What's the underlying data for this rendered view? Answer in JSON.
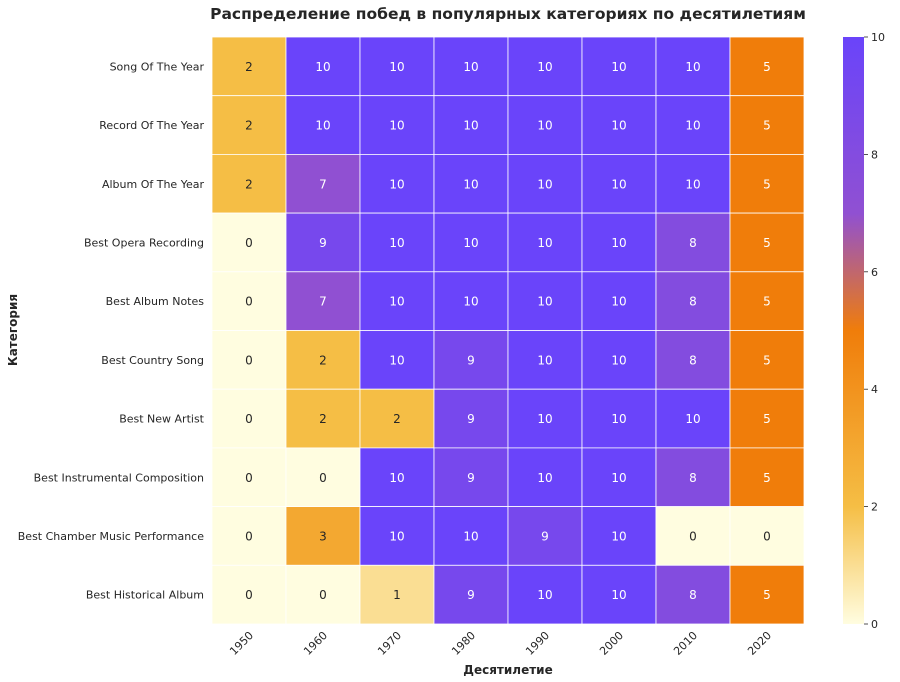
{
  "chart_data": {
    "type": "heatmap",
    "title": "Распределение побед в популярных категориях по десятилетиям",
    "xlabel": "Десятилетие",
    "ylabel": "Категория",
    "x": [
      "1950",
      "1960",
      "1970",
      "1980",
      "1990",
      "2000",
      "2010",
      "2020"
    ],
    "y": [
      "Song Of The Year",
      "Record Of The Year",
      "Album Of The Year",
      "Best Opera Recording",
      "Best Album Notes",
      "Best Country Song",
      "Best New Artist",
      "Best Instrumental Composition",
      "Best Chamber Music Performance",
      "Best Historical Album"
    ],
    "values": [
      [
        2,
        10,
        10,
        10,
        10,
        10,
        10,
        5
      ],
      [
        2,
        10,
        10,
        10,
        10,
        10,
        10,
        5
      ],
      [
        2,
        7,
        10,
        10,
        10,
        10,
        10,
        5
      ],
      [
        0,
        9,
        10,
        10,
        10,
        10,
        8,
        5
      ],
      [
        0,
        7,
        10,
        10,
        10,
        10,
        8,
        5
      ],
      [
        0,
        2,
        10,
        9,
        10,
        10,
        8,
        5
      ],
      [
        0,
        2,
        2,
        9,
        10,
        10,
        10,
        5
      ],
      [
        0,
        0,
        10,
        9,
        10,
        10,
        8,
        5
      ],
      [
        0,
        3,
        10,
        10,
        9,
        10,
        0,
        0
      ],
      [
        0,
        0,
        1,
        9,
        10,
        10,
        8,
        5
      ]
    ],
    "vmin": 0,
    "vmax": 10,
    "colorbar_ticks": [
      "0",
      "2",
      "4",
      "6",
      "8",
      "10"
    ],
    "colormap": {
      "stops": [
        {
          "value": 0,
          "color": "#fffde0"
        },
        {
          "value": 2,
          "color": "#f5be45"
        },
        {
          "value": 5,
          "color": "#f07d0a"
        },
        {
          "value": 7,
          "color": "#9050d2"
        },
        {
          "value": 10,
          "color": "#6a44fa"
        }
      ]
    },
    "label_light_color": "#ffffff",
    "label_dark_color": "#262626"
  }
}
